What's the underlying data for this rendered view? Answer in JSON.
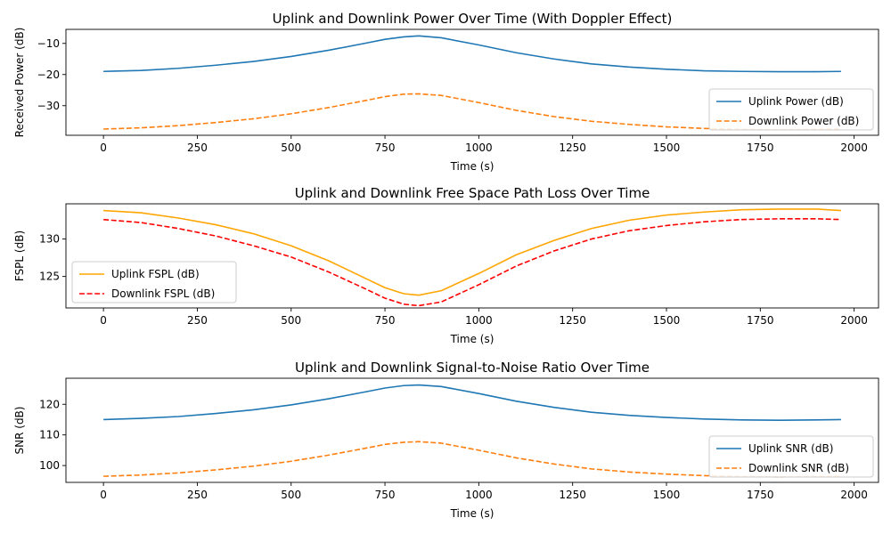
{
  "figure": {
    "background": "#ffffff"
  },
  "chart_data": [
    {
      "type": "line",
      "title": "Uplink and Downlink Power Over Time (With Doppler Effect)",
      "xlabel": "Time (s)",
      "ylabel": "Received Power (dB)",
      "xlim": [
        -100,
        2065
      ],
      "ylim": [
        -39.5,
        -5.5
      ],
      "xticks": [
        0,
        250,
        500,
        750,
        1000,
        1250,
        1500,
        1750,
        2000
      ],
      "yticks": [
        -30,
        -20,
        -10
      ],
      "legend_position": "lower-right",
      "series": [
        {
          "name": "Uplink Power (dB)",
          "color": "#1f77b4",
          "dash": "solid",
          "x": [
            0,
            100,
            200,
            300,
            400,
            500,
            600,
            700,
            750,
            800,
            840,
            900,
            1000,
            1100,
            1200,
            1300,
            1400,
            1500,
            1600,
            1700,
            1800,
            1900,
            1965
          ],
          "y": [
            -19,
            -18.7,
            -18,
            -17,
            -15.8,
            -14.2,
            -12.2,
            -9.9,
            -8.7,
            -7.9,
            -7.6,
            -8.2,
            -10.5,
            -13,
            -15,
            -16.6,
            -17.6,
            -18.3,
            -18.8,
            -19,
            -19.1,
            -19.1,
            -19
          ]
        },
        {
          "name": "Downlink Power (dB)",
          "color": "#ff7f0e",
          "dash": "dashed",
          "x": [
            0,
            100,
            200,
            300,
            400,
            500,
            600,
            700,
            750,
            800,
            840,
            900,
            1000,
            1100,
            1200,
            1300,
            1400,
            1500,
            1600,
            1700,
            1800,
            1900,
            1965
          ],
          "y": [
            -37.5,
            -37.1,
            -36.4,
            -35.4,
            -34.2,
            -32.6,
            -30.6,
            -28.3,
            -27.1,
            -26.3,
            -26.2,
            -26.7,
            -29,
            -31.5,
            -33.5,
            -35,
            -36,
            -36.8,
            -37.3,
            -37.6,
            -37.7,
            -37.6,
            -37.5
          ]
        }
      ]
    },
    {
      "type": "line",
      "title": "Uplink and Downlink Free Space Path Loss Over Time",
      "xlabel": "Time (s)",
      "ylabel": "FSPL (dB)",
      "xlim": [
        -100,
        2065
      ],
      "ylim": [
        120.8,
        134.7
      ],
      "xticks": [
        0,
        250,
        500,
        750,
        1000,
        1250,
        1500,
        1750,
        2000
      ],
      "yticks": [
        125,
        130
      ],
      "legend_position": "lower-left",
      "series": [
        {
          "name": "Uplink FSPL (dB)",
          "color": "#ffa500",
          "dash": "solid",
          "x": [
            0,
            100,
            200,
            300,
            400,
            500,
            600,
            700,
            750,
            800,
            840,
            900,
            1000,
            1100,
            1200,
            1300,
            1400,
            1500,
            1600,
            1700,
            1800,
            1900,
            1965
          ],
          "y": [
            133.8,
            133.5,
            132.8,
            131.9,
            130.7,
            129.1,
            127.1,
            124.7,
            123.5,
            122.7,
            122.5,
            123.1,
            125.4,
            127.9,
            129.8,
            131.4,
            132.5,
            133.2,
            133.6,
            133.9,
            134,
            134,
            133.8
          ]
        },
        {
          "name": "Downlink FSPL (dB)",
          "color": "#ff0000",
          "dash": "dashed",
          "x": [
            0,
            100,
            200,
            300,
            400,
            500,
            600,
            700,
            750,
            800,
            840,
            900,
            1000,
            1100,
            1200,
            1300,
            1400,
            1500,
            1600,
            1700,
            1800,
            1900,
            1965
          ],
          "y": [
            132.6,
            132.2,
            131.4,
            130.4,
            129.1,
            127.6,
            125.6,
            123.3,
            122.1,
            121.3,
            121.1,
            121.6,
            123.9,
            126.4,
            128.4,
            130,
            131.1,
            131.8,
            132.3,
            132.6,
            132.7,
            132.7,
            132.6
          ]
        }
      ]
    },
    {
      "type": "line",
      "title": "Uplink and Downlink Signal-to-Noise Ratio Over Time",
      "xlabel": "Time (s)",
      "ylabel": "SNR (dB)",
      "xlim": [
        -100,
        2065
      ],
      "ylim": [
        94.5,
        128.5
      ],
      "xticks": [
        0,
        250,
        500,
        750,
        1000,
        1250,
        1500,
        1750,
        2000
      ],
      "yticks": [
        100,
        110,
        120
      ],
      "legend_position": "lower-right",
      "series": [
        {
          "name": "Uplink SNR (dB)",
          "color": "#1f77b4",
          "dash": "solid",
          "x": [
            0,
            100,
            200,
            300,
            400,
            500,
            600,
            700,
            750,
            800,
            840,
            900,
            1000,
            1100,
            1200,
            1300,
            1400,
            1500,
            1600,
            1700,
            1800,
            1900,
            1965
          ],
          "y": [
            115,
            115.4,
            116,
            117,
            118.2,
            119.8,
            121.8,
            124.1,
            125.3,
            126.1,
            126.3,
            125.8,
            123.5,
            121,
            119,
            117.4,
            116.4,
            115.7,
            115.2,
            114.9,
            114.8,
            114.9,
            115
          ]
        },
        {
          "name": "Downlink SNR (dB)",
          "color": "#ff7f0e",
          "dash": "dashed",
          "x": [
            0,
            100,
            200,
            300,
            400,
            500,
            600,
            700,
            750,
            800,
            840,
            900,
            1000,
            1100,
            1200,
            1300,
            1400,
            1500,
            1600,
            1700,
            1800,
            1900,
            1965
          ],
          "y": [
            96.5,
            96.9,
            97.6,
            98.6,
            99.8,
            101.4,
            103.4,
            105.7,
            106.9,
            107.6,
            107.8,
            107.3,
            105,
            102.5,
            100.5,
            98.9,
            97.9,
            97.2,
            96.7,
            96.4,
            96.3,
            96.4,
            96.5
          ]
        }
      ]
    }
  ]
}
